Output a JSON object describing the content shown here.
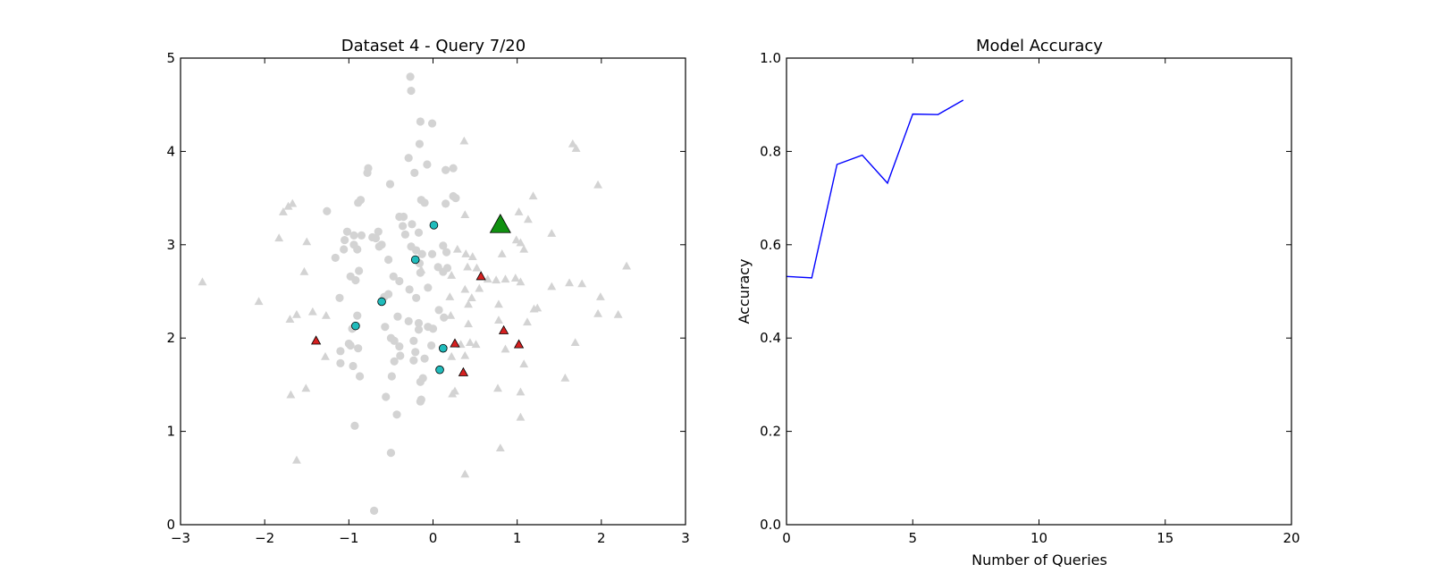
{
  "chart_data": [
    {
      "type": "scatter",
      "title": "Dataset 4 - Query 7/20",
      "xlabel": "",
      "ylabel": "",
      "xlim": [
        -3,
        3
      ],
      "ylim": [
        0,
        5
      ],
      "xticks": [
        -3,
        -2,
        -1,
        0,
        1,
        2,
        3
      ],
      "yticks": [
        0,
        1,
        2,
        3,
        4,
        5
      ],
      "xtick_labels": [
        "−3",
        "−2",
        "−1",
        "0",
        "1",
        "2",
        "3"
      ],
      "ytick_labels": [
        "0",
        "1",
        "2",
        "3",
        "4",
        "5"
      ],
      "grid": false,
      "series": [
        {
          "marker": "circle",
          "color": "#d3d3d3",
          "points": [
            [
              -0.27,
              4.8
            ],
            [
              -0.26,
              4.65
            ],
            [
              -0.15,
              4.32
            ],
            [
              -0.01,
              4.3
            ],
            [
              -0.16,
              4.08
            ],
            [
              -0.29,
              3.93
            ],
            [
              -0.07,
              3.86
            ],
            [
              0.15,
              3.8
            ],
            [
              0.24,
              3.82
            ],
            [
              -0.77,
              3.82
            ],
            [
              -0.78,
              3.77
            ],
            [
              -0.22,
              3.77
            ],
            [
              -0.51,
              3.65
            ],
            [
              -0.86,
              3.48
            ],
            [
              -0.89,
              3.45
            ],
            [
              -0.14,
              3.48
            ],
            [
              -0.1,
              3.45
            ],
            [
              0.24,
              3.52
            ],
            [
              0.27,
              3.5
            ],
            [
              0.15,
              3.44
            ],
            [
              -1.26,
              3.36
            ],
            [
              -0.4,
              3.3
            ],
            [
              -0.35,
              3.3
            ],
            [
              -0.25,
              3.22
            ],
            [
              -1.02,
              3.14
            ],
            [
              -0.94,
              3.1
            ],
            [
              -1.05,
              3.05
            ],
            [
              -0.85,
              3.1
            ],
            [
              -0.68,
              3.07
            ],
            [
              -0.72,
              3.08
            ],
            [
              -0.65,
              3.14
            ],
            [
              -0.36,
              3.2
            ],
            [
              -0.33,
              3.11
            ],
            [
              -0.17,
              3.13
            ],
            [
              -1.06,
              2.95
            ],
            [
              -0.94,
              3.0
            ],
            [
              -0.9,
              2.95
            ],
            [
              -0.64,
              2.98
            ],
            [
              -0.61,
              3.0
            ],
            [
              -0.26,
              2.98
            ],
            [
              -0.2,
              2.94
            ],
            [
              -0.13,
              2.9
            ],
            [
              0.12,
              2.99
            ],
            [
              0.16,
              2.92
            ],
            [
              -1.16,
              2.86
            ],
            [
              -0.88,
              2.72
            ],
            [
              -0.98,
              2.66
            ],
            [
              -0.92,
              2.62
            ],
            [
              -0.53,
              2.84
            ],
            [
              -0.16,
              2.8
            ],
            [
              -0.15,
              2.7
            ],
            [
              -0.01,
              2.9
            ],
            [
              0.06,
              2.76
            ],
            [
              0.12,
              2.71
            ],
            [
              0.17,
              2.75
            ],
            [
              -0.47,
              2.66
            ],
            [
              -0.4,
              2.61
            ],
            [
              -0.28,
              2.52
            ],
            [
              -0.2,
              2.43
            ],
            [
              -0.06,
              2.54
            ],
            [
              -1.11,
              2.43
            ],
            [
              -0.58,
              2.44
            ],
            [
              -0.53,
              2.47
            ],
            [
              -0.9,
              2.24
            ],
            [
              -0.42,
              2.23
            ],
            [
              -0.29,
              2.18
            ],
            [
              -0.17,
              2.16
            ],
            [
              -0.17,
              2.09
            ],
            [
              -0.06,
              2.12
            ],
            [
              0.0,
              2.1
            ],
            [
              0.07,
              2.3
            ],
            [
              0.13,
              2.22
            ],
            [
              -0.57,
              2.12
            ],
            [
              -0.5,
              2.0
            ],
            [
              -0.46,
              1.97
            ],
            [
              -0.4,
              1.91
            ],
            [
              -0.23,
              1.97
            ],
            [
              -0.02,
              1.92
            ],
            [
              -1.1,
              1.86
            ],
            [
              -1.0,
              1.94
            ],
            [
              -0.98,
              1.92
            ],
            [
              -0.89,
              1.89
            ],
            [
              -0.39,
              1.81
            ],
            [
              -0.21,
              1.85
            ],
            [
              -0.23,
              1.76
            ],
            [
              -0.46,
              1.75
            ],
            [
              -0.1,
              1.78
            ],
            [
              -1.1,
              1.73
            ],
            [
              -0.95,
              1.7
            ],
            [
              -0.87,
              1.59
            ],
            [
              -0.49,
              1.59
            ],
            [
              -0.15,
              1.53
            ],
            [
              -0.12,
              1.57
            ],
            [
              -0.56,
              1.37
            ],
            [
              -0.14,
              1.34
            ],
            [
              -0.15,
              1.32
            ],
            [
              -0.43,
              1.18
            ],
            [
              -0.93,
              1.06
            ],
            [
              -0.5,
              0.77
            ],
            [
              -0.7,
              0.15
            ],
            [
              -0.96,
              2.1
            ]
          ]
        },
        {
          "marker": "triangle",
          "color": "#d3d3d3",
          "points": [
            [
              0.37,
              4.11
            ],
            [
              1.66,
              4.08
            ],
            [
              1.7,
              4.03
            ],
            [
              1.96,
              3.64
            ],
            [
              1.19,
              3.52
            ],
            [
              -1.67,
              3.44
            ],
            [
              -1.72,
              3.41
            ],
            [
              -1.78,
              3.35
            ],
            [
              1.02,
              3.35
            ],
            [
              0.38,
              3.32
            ],
            [
              1.13,
              3.27
            ],
            [
              -1.83,
              3.07
            ],
            [
              -1.5,
              3.03
            ],
            [
              0.99,
              3.05
            ],
            [
              1.04,
              3.02
            ],
            [
              1.41,
              3.12
            ],
            [
              1.08,
              2.95
            ],
            [
              0.29,
              2.95
            ],
            [
              0.39,
              2.9
            ],
            [
              0.47,
              2.87
            ],
            [
              0.82,
              2.9
            ],
            [
              0.41,
              2.76
            ],
            [
              0.52,
              2.75
            ],
            [
              -2.74,
              2.6
            ],
            [
              -1.53,
              2.71
            ],
            [
              -0.14,
              2.73
            ],
            [
              0.22,
              2.67
            ],
            [
              0.65,
              2.63
            ],
            [
              0.75,
              2.62
            ],
            [
              0.86,
              2.63
            ],
            [
              0.98,
              2.64
            ],
            [
              0.38,
              2.52
            ],
            [
              0.55,
              2.53
            ],
            [
              1.04,
              2.6
            ],
            [
              1.41,
              2.55
            ],
            [
              1.62,
              2.59
            ],
            [
              1.77,
              2.58
            ],
            [
              -2.07,
              2.39
            ],
            [
              0.2,
              2.44
            ],
            [
              0.46,
              2.43
            ],
            [
              0.42,
              2.36
            ],
            [
              0.78,
              2.36
            ],
            [
              1.2,
              2.31
            ],
            [
              1.24,
              2.32
            ],
            [
              1.99,
              2.44
            ],
            [
              -1.7,
              2.2
            ],
            [
              -1.62,
              2.25
            ],
            [
              -1.43,
              2.28
            ],
            [
              -1.27,
              2.24
            ],
            [
              0.21,
              2.24
            ],
            [
              0.42,
              2.15
            ],
            [
              0.78,
              2.19
            ],
            [
              1.12,
              2.17
            ],
            [
              1.96,
              2.26
            ],
            [
              2.2,
              2.25
            ],
            [
              2.3,
              2.77
            ],
            [
              0.33,
              1.93
            ],
            [
              0.51,
              1.93
            ],
            [
              0.44,
              1.95
            ],
            [
              0.86,
              1.88
            ],
            [
              1.69,
              1.95
            ],
            [
              -1.28,
              1.8
            ],
            [
              0.22,
              1.8
            ],
            [
              0.38,
              1.81
            ],
            [
              1.08,
              1.72
            ],
            [
              -1.51,
              1.46
            ],
            [
              -1.69,
              1.39
            ],
            [
              0.26,
              1.43
            ],
            [
              0.23,
              1.4
            ],
            [
              0.77,
              1.46
            ],
            [
              1.04,
              1.42
            ],
            [
              1.57,
              1.57
            ],
            [
              1.04,
              1.15
            ],
            [
              -1.62,
              0.69
            ],
            [
              0.8,
              0.82
            ],
            [
              0.38,
              0.54
            ]
          ]
        },
        {
          "marker": "circle",
          "color": "#20bcbc",
          "points": [
            [
              0.01,
              3.21
            ],
            [
              -0.21,
              2.84
            ],
            [
              -0.61,
              2.39
            ],
            [
              -0.92,
              2.13
            ],
            [
              0.12,
              1.89
            ],
            [
              0.08,
              1.66
            ]
          ]
        },
        {
          "marker": "triangle",
          "color": "#d62020",
          "points": [
            [
              -1.39,
              1.97
            ],
            [
              0.57,
              2.66
            ],
            [
              0.84,
              2.08
            ],
            [
              1.02,
              1.93
            ],
            [
              0.26,
              1.94
            ],
            [
              0.36,
              1.63
            ]
          ]
        },
        {
          "marker": "triangle-large",
          "color": "#109010",
          "points": [
            [
              0.8,
              3.21
            ]
          ]
        }
      ]
    },
    {
      "type": "line",
      "title": "Model Accuracy",
      "xlabel": "Number of Queries",
      "ylabel": "Accuracy",
      "xlim": [
        0,
        20
      ],
      "ylim": [
        0,
        1
      ],
      "xticks": [
        0,
        5,
        10,
        15,
        20
      ],
      "yticks": [
        0,
        0.2,
        0.4,
        0.6,
        0.8,
        1.0
      ],
      "xtick_labels": [
        "0",
        "5",
        "10",
        "15",
        "20"
      ],
      "ytick_labels": [
        "0.0",
        "0.2",
        "0.4",
        "0.6",
        "0.8",
        "1.0"
      ],
      "grid": false,
      "series": [
        {
          "color": "#0000ff",
          "x": [
            0,
            1,
            2,
            3,
            4,
            5,
            6,
            7
          ],
          "y": [
            0.532,
            0.529,
            0.772,
            0.792,
            0.732,
            0.88,
            0.879,
            0.91
          ]
        }
      ]
    }
  ]
}
